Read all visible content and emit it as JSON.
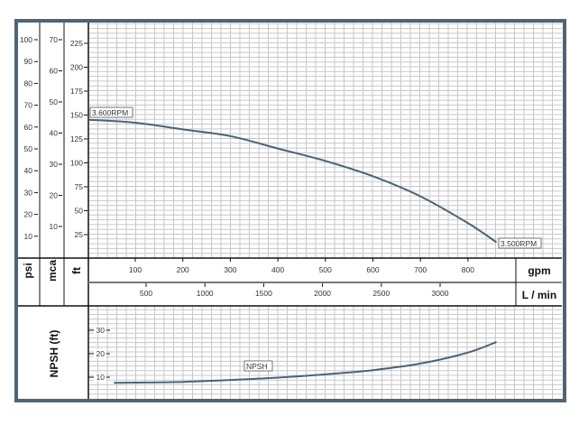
{
  "colors": {
    "frame": "#4d6577",
    "curve": "#4a6474",
    "grid": "#c8c8c8",
    "axis": "#111111"
  },
  "chart_data": [
    {
      "type": "line",
      "grid": true,
      "x_primary": {
        "unit": "gpm",
        "ticks": [
          100,
          200,
          300,
          400,
          500,
          600,
          700,
          800
        ],
        "range": [
          0,
          1000
        ]
      },
      "x_secondary": {
        "unit": "L / min",
        "ticks": [
          500,
          1000,
          1500,
          2000,
          2500,
          3000
        ]
      },
      "y_axes": [
        {
          "unit": "psi",
          "ticks": [
            10,
            20,
            30,
            40,
            50,
            60,
            70,
            80,
            90,
            100
          ]
        },
        {
          "unit": "mca",
          "ticks": [
            10,
            20,
            30,
            40,
            50,
            60,
            70
          ]
        },
        {
          "unit": "ft",
          "ticks": [
            25,
            50,
            75,
            100,
            125,
            150,
            175,
            200,
            225
          ],
          "range": [
            0,
            240
          ]
        }
      ],
      "series": [
        {
          "name": "",
          "x": [
            0,
            100,
            200,
            300,
            400,
            500,
            600,
            700,
            800,
            860
          ],
          "y": [
            145,
            142,
            135,
            128,
            115,
            102,
            86,
            65,
            37,
            17
          ]
        }
      ],
      "annotations": [
        {
          "text": "3.600RPM",
          "at_gpm": 0,
          "at_ft": 145
        },
        {
          "text": "3.500RPM",
          "at_gpm": 860,
          "at_ft": 17
        }
      ]
    },
    {
      "type": "line",
      "grid": true,
      "ylabel": "NPSH (ft)",
      "y_ticks": [
        10,
        20,
        30
      ],
      "y_range": [
        0,
        40
      ],
      "series": [
        {
          "name": "NPSH",
          "x": [
            55,
            100,
            200,
            300,
            400,
            500,
            600,
            700,
            800,
            860
          ],
          "y": [
            7.6,
            7.7,
            8.0,
            8.8,
            9.8,
            11.2,
            13,
            15.8,
            20.5,
            25
          ]
        }
      ]
    }
  ]
}
